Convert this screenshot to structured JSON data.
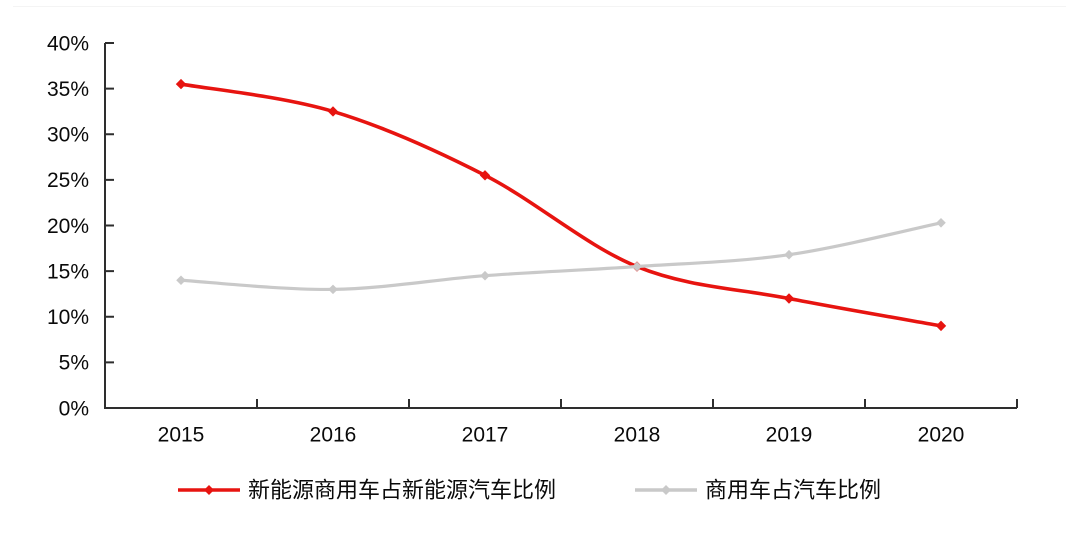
{
  "chart_data": {
    "type": "line",
    "title": "",
    "xlabel": "",
    "ylabel": "",
    "categories": [
      "2015",
      "2016",
      "2017",
      "2018",
      "2019",
      "2020"
    ],
    "series": [
      {
        "name": "新能源商用车占新能源汽车比例",
        "color": "#e71410",
        "marker": "diamond",
        "values": [
          35.5,
          32.5,
          25.5,
          15.5,
          12.0,
          9.0
        ]
      },
      {
        "name": "商用车占汽车比例",
        "color": "#c9c9c9",
        "marker": "diamond",
        "values": [
          14.0,
          13.0,
          14.5,
          15.5,
          16.8,
          20.3
        ]
      }
    ],
    "ylim": [
      0,
      40
    ],
    "y_ticks": [
      "0%",
      "5%",
      "10%",
      "15%",
      "20%",
      "25%",
      "30%",
      "35%",
      "40%"
    ],
    "grid": false,
    "line_style": "smooth",
    "legend_position": "bottom",
    "axis_color": "#2e2e2e",
    "text_color": "#0a0a0a"
  }
}
